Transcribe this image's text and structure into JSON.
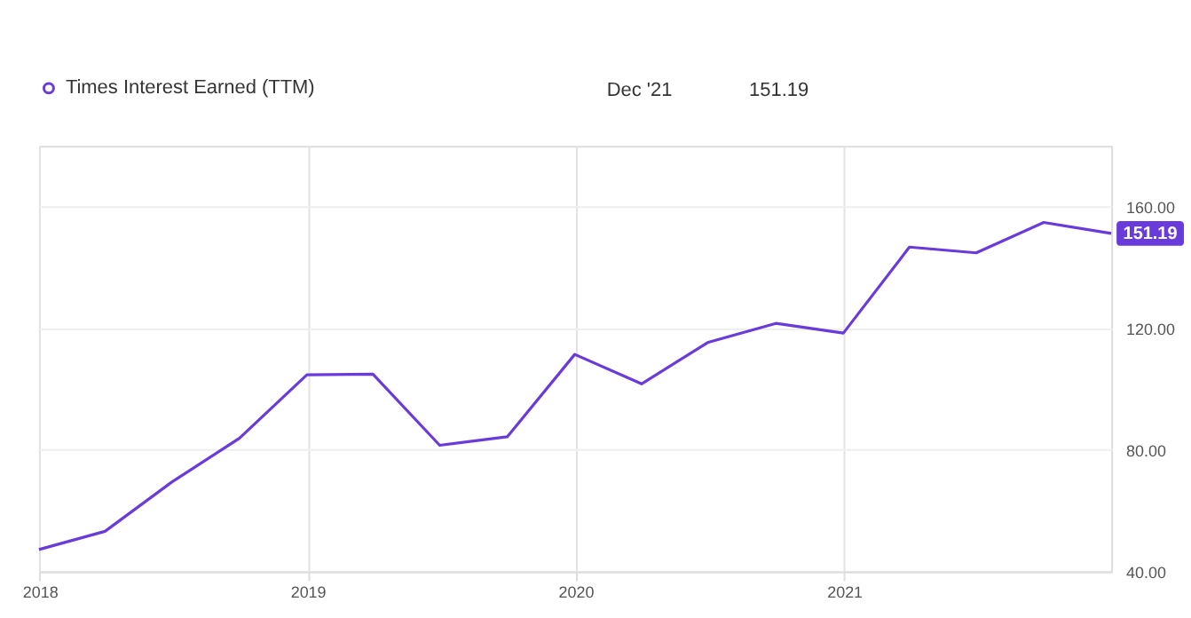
{
  "chart_data": {
    "type": "line",
    "x": [
      "2017-12-31",
      "2018-03-31",
      "2018-06-30",
      "2018-09-30",
      "2018-12-31",
      "2019-03-31",
      "2019-06-30",
      "2019-09-30",
      "2019-12-31",
      "2020-03-31",
      "2020-06-30",
      "2020-09-30",
      "2020-12-31",
      "2021-03-31",
      "2021-06-30",
      "2021-09-30",
      "2021-12-31"
    ],
    "series": [
      {
        "name": "Times Interest Earned (TTM)",
        "color": "#6a3bdb",
        "values": [
          47.2,
          53.2,
          69.4,
          83.8,
          104.7,
          104.9,
          81.5,
          84.3,
          111.4,
          101.7,
          115.4,
          121.6,
          118.4,
          146.7,
          144.8,
          154.8,
          151.19
        ]
      }
    ],
    "xlim": [
      "2017-12-31",
      "2021-12-31"
    ],
    "xticks": [
      {
        "value": "2018-01-01",
        "label": "2018"
      },
      {
        "value": "2019-01-01",
        "label": "2019"
      },
      {
        "value": "2020-01-01",
        "label": "2020"
      },
      {
        "value": "2021-01-01",
        "label": "2021"
      }
    ],
    "ylim": [
      40,
      180
    ],
    "yticks": [
      {
        "value": 40,
        "label": "40.00"
      },
      {
        "value": 80,
        "label": "80.00"
      },
      {
        "value": 120,
        "label": "120.00"
      },
      {
        "value": 160,
        "label": "160.00"
      }
    ],
    "grid": true,
    "legend": "top left",
    "marker": "none",
    "line_style": "solid",
    "annotations": [
      "Dec '21",
      "151.19",
      {
        "text": "151.19",
        "x": "2021-12-31",
        "y": 151.19
      }
    ]
  }
}
